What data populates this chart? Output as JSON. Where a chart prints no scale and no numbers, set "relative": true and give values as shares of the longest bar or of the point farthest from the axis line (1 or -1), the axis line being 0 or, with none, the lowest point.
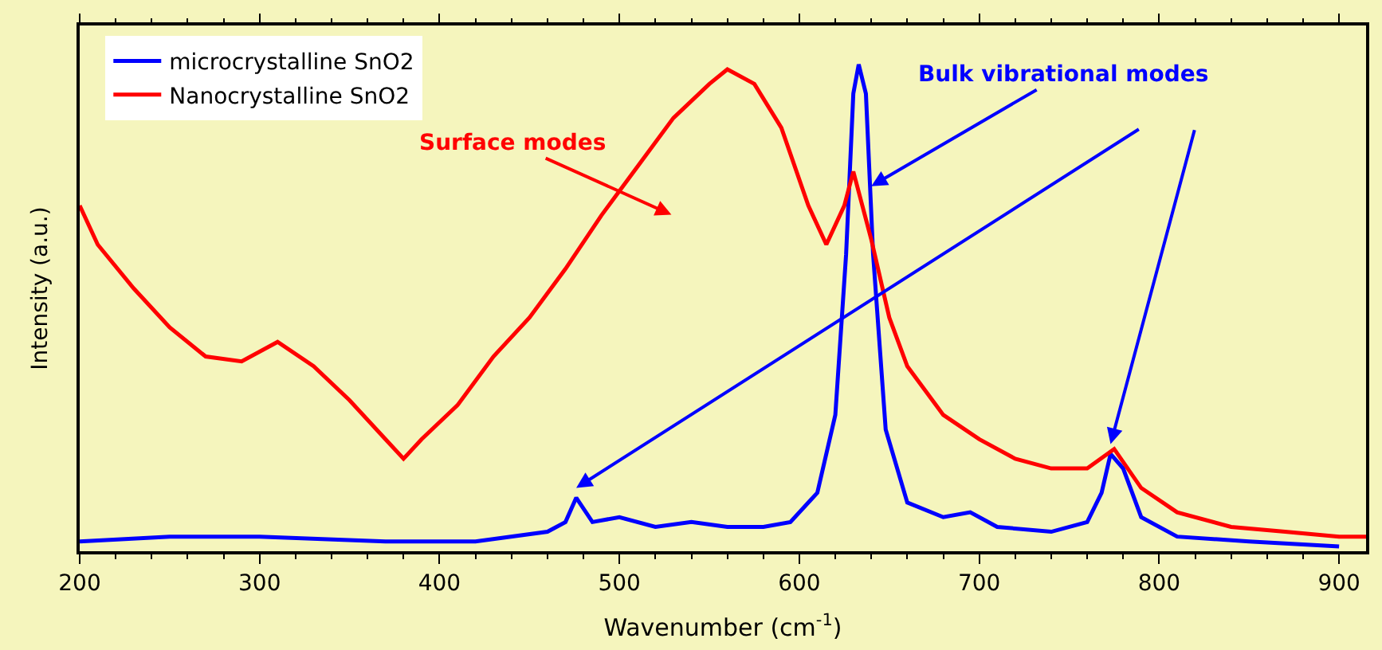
{
  "chart_data": {
    "type": "line",
    "relative": true,
    "xlabel": "Wavenumber (cm$^{-1}$)",
    "ylabel": "Intensity (a.u.)",
    "xlim": [
      200,
      915
    ],
    "xticks": [
      200,
      300,
      400,
      500,
      600,
      700,
      800,
      900
    ],
    "tick_labels": "x",
    "legend": "top left",
    "grid": false,
    "series": [
      {
        "name": "microcrystalline SnO2",
        "color": "#0000ff",
        "x": [
          200,
          250,
          300,
          370,
          420,
          460,
          470,
          476,
          485,
          500,
          520,
          540,
          560,
          580,
          595,
          610,
          620,
          626,
          630,
          633,
          637,
          641,
          648,
          660,
          680,
          695,
          710,
          740,
          760,
          768,
          773,
          780,
          790,
          810,
          850,
          900
        ],
        "values": [
          0.02,
          0.03,
          0.03,
          0.02,
          0.02,
          0.04,
          0.06,
          0.11,
          0.06,
          0.07,
          0.05,
          0.06,
          0.05,
          0.05,
          0.06,
          0.12,
          0.28,
          0.61,
          0.94,
          1.0,
          0.94,
          0.61,
          0.25,
          0.1,
          0.07,
          0.08,
          0.05,
          0.04,
          0.06,
          0.12,
          0.2,
          0.17,
          0.07,
          0.03,
          0.02,
          0.01
        ]
      },
      {
        "name": "Nanocrystalline SnO2",
        "color": "#ff0000",
        "x": [
          200,
          210,
          230,
          250,
          270,
          290,
          310,
          330,
          350,
          370,
          380,
          390,
          410,
          430,
          450,
          470,
          490,
          510,
          530,
          550,
          560,
          575,
          590,
          605,
          615,
          625,
          630,
          640,
          650,
          660,
          680,
          700,
          720,
          740,
          760,
          775,
          790,
          810,
          840,
          870,
          900,
          915
        ],
        "values": [
          0.71,
          0.63,
          0.54,
          0.46,
          0.4,
          0.39,
          0.43,
          0.38,
          0.31,
          0.23,
          0.19,
          0.23,
          0.3,
          0.4,
          0.48,
          0.58,
          0.69,
          0.79,
          0.89,
          0.96,
          0.99,
          0.96,
          0.87,
          0.71,
          0.63,
          0.71,
          0.78,
          0.64,
          0.48,
          0.38,
          0.28,
          0.23,
          0.19,
          0.17,
          0.17,
          0.21,
          0.13,
          0.08,
          0.05,
          0.04,
          0.03,
          0.03
        ]
      }
    ],
    "annotations": [
      "Surface modes",
      {
        "text": "Bulk vibrational modes",
        "x": 640,
        "y": 0.75
      }
    ]
  }
}
